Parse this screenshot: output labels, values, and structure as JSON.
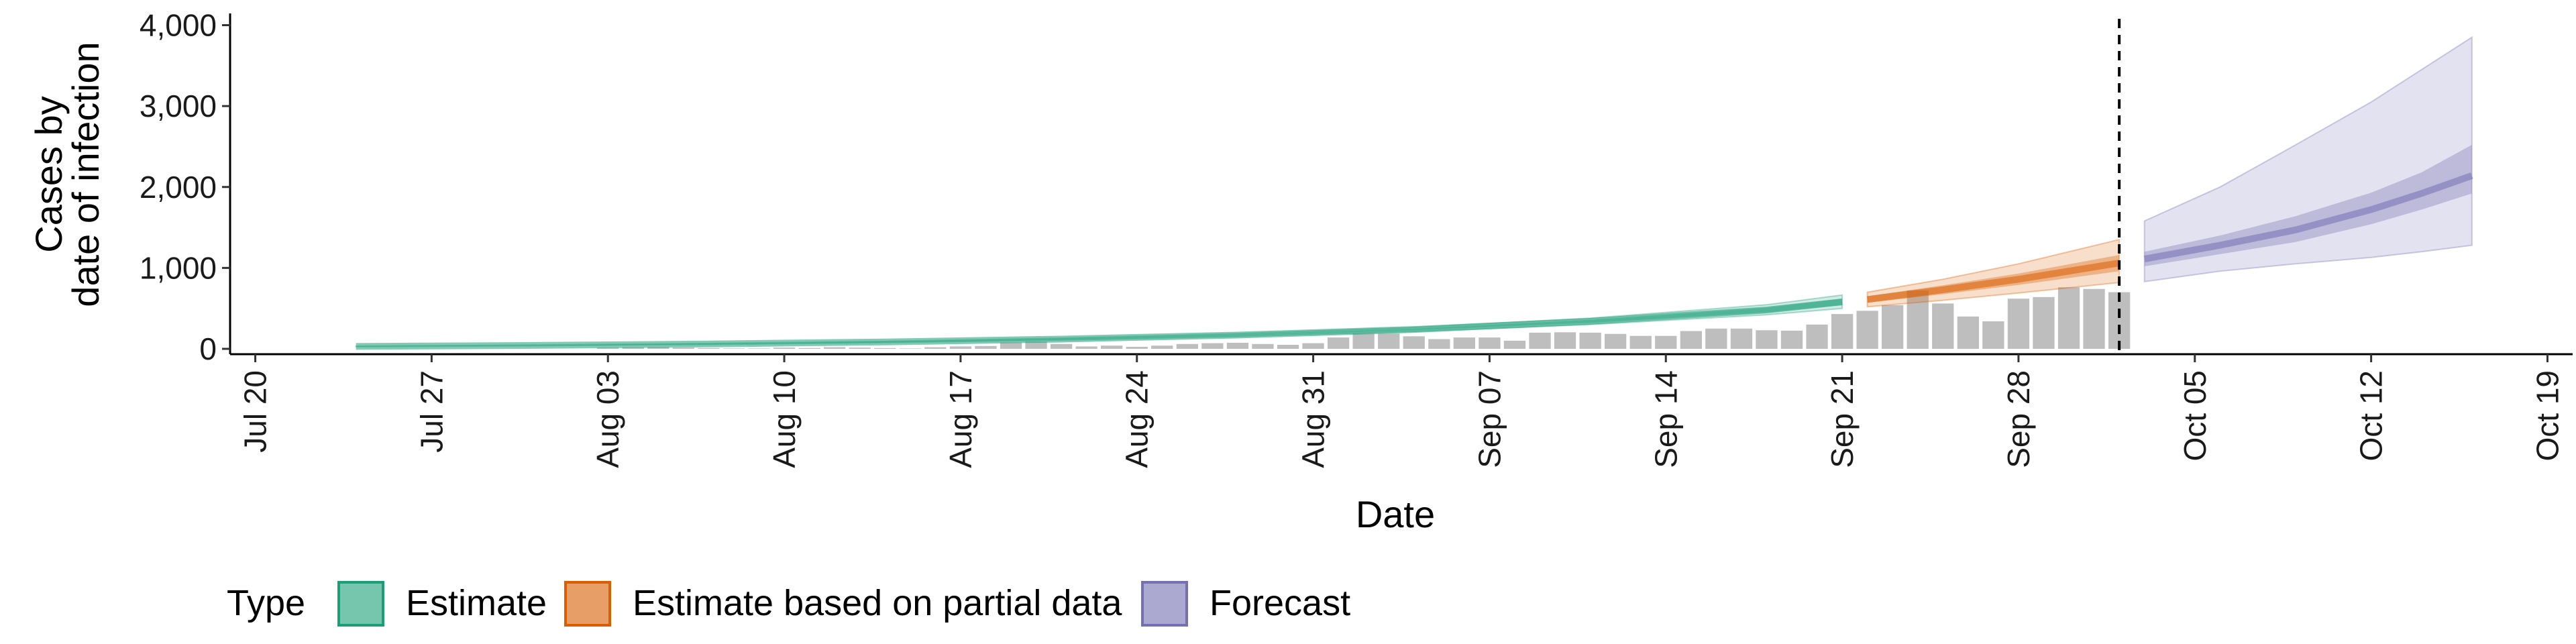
{
  "chart_data": {
    "type": "bar",
    "xlabel": "Date",
    "ylabel_lines": [
      "Cases by",
      "date of infection"
    ],
    "ylim": [
      0,
      4000
    ],
    "y_ticks": [
      0,
      1000,
      2000,
      3000,
      4000
    ],
    "y_tick_labels": [
      "0",
      "1,000",
      "2,000",
      "3,000",
      "4,000"
    ],
    "x_range": [
      "2020-07-19",
      "2020-10-20"
    ],
    "x_ticks": [
      "2020-07-20",
      "2020-07-27",
      "2020-08-03",
      "2020-08-10",
      "2020-08-17",
      "2020-08-24",
      "2020-08-31",
      "2020-09-07",
      "2020-09-14",
      "2020-09-21",
      "2020-09-28",
      "2020-10-05",
      "2020-10-12",
      "2020-10-19"
    ],
    "x_tick_labels": [
      "Jul 20",
      "Jul 27",
      "Aug 03",
      "Aug 10",
      "Aug 17",
      "Aug 24",
      "Aug 31",
      "Sep 07",
      "Sep 14",
      "Sep 21",
      "Sep 28",
      "Oct 05",
      "Oct 12",
      "Oct 19"
    ],
    "reference_line_date": "2020-10-02",
    "reported_cases": {
      "start_date": "2020-08-03",
      "values": [
        15,
        20,
        25,
        15,
        10,
        5,
        5,
        15,
        10,
        20,
        15,
        10,
        5,
        20,
        30,
        35,
        80,
        90,
        60,
        30,
        40,
        25,
        40,
        60,
        70,
        75,
        60,
        50,
        70,
        140,
        190,
        190,
        155,
        120,
        140,
        140,
        100,
        200,
        205,
        200,
        185,
        160,
        160,
        220,
        250,
        250,
        230,
        225,
        300,
        430,
        470,
        540,
        720,
        560,
        400,
        340,
        620,
        640,
        760,
        740,
        700
      ]
    },
    "series": [
      {
        "name": "Estimate",
        "color": "#1b9e77",
        "dates": [
          "2020-07-24",
          "2020-07-31",
          "2020-08-07",
          "2020-08-14",
          "2020-08-21",
          "2020-08-28",
          "2020-09-04",
          "2020-09-11",
          "2020-09-18",
          "2020-09-21"
        ],
        "median": [
          30,
          42,
          60,
          85,
          120,
          170,
          240,
          340,
          480,
          580
        ],
        "lower50": [
          28,
          40,
          57,
          81,
          115,
          162,
          229,
          322,
          450,
          540
        ],
        "upper50": [
          32,
          44,
          63,
          89,
          125,
          178,
          251,
          358,
          510,
          620
        ],
        "lower90": [
          26,
          37,
          53,
          76,
          108,
          152,
          215,
          300,
          420,
          500
        ],
        "upper90": [
          34,
          47,
          67,
          94,
          132,
          188,
          265,
          380,
          545,
          665
        ]
      },
      {
        "name": "Estimate based on partial data",
        "color": "#d95f02",
        "dates": [
          "2020-09-22",
          "2020-09-25",
          "2020-09-28",
          "2020-10-02"
        ],
        "median": [
          610,
          730,
          860,
          1060
        ],
        "lower50": [
          570,
          675,
          790,
          960
        ],
        "upper50": [
          650,
          785,
          930,
          1160
        ],
        "lower90": [
          520,
          600,
          690,
          820
        ],
        "upper90": [
          700,
          860,
          1050,
          1350
        ]
      },
      {
        "name": "Forecast",
        "color": "#7570b3",
        "dates": [
          "2020-10-03",
          "2020-10-06",
          "2020-10-09",
          "2020-10-12",
          "2020-10-14",
          "2020-10-16"
        ],
        "median": [
          1110,
          1280,
          1470,
          1720,
          1920,
          2140
        ],
        "lower50": [
          1020,
          1170,
          1320,
          1540,
          1720,
          1920
        ],
        "upper50": [
          1200,
          1400,
          1640,
          1930,
          2180,
          2520
        ],
        "lower90": [
          830,
          960,
          1050,
          1130,
          1200,
          1280
        ],
        "upper90": [
          1580,
          2000,
          2520,
          3050,
          3450,
          3850
        ]
      }
    ],
    "legend": {
      "title": "Type",
      "placement": "bottom",
      "items": [
        "Estimate",
        "Estimate based on partial data",
        "Forecast"
      ]
    },
    "bar_color": "#bebebe",
    "grid": false
  }
}
